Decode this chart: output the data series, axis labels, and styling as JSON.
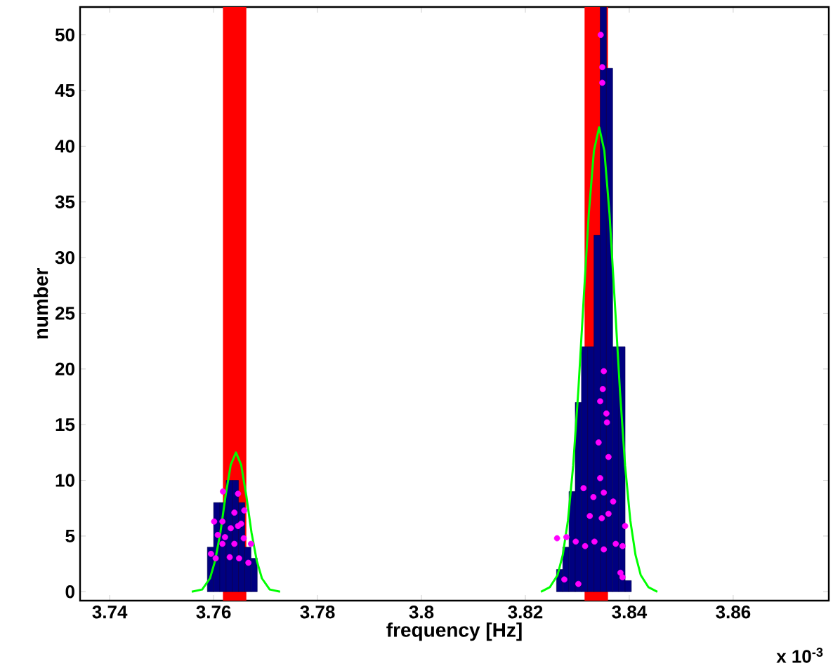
{
  "chart_data": {
    "type": "histogram",
    "xlabel": "frequency [Hz]",
    "ylabel": "number",
    "annotations": [
      "x 10$^{-3}$"
    ],
    "bins": [
      3.7588,
      3.76,
      3.7612,
      3.7624,
      3.7636,
      3.7648,
      3.766,
      3.7672,
      3.7684,
      3.826,
      3.8272,
      3.8284,
      3.8296,
      3.8308,
      3.832,
      3.8332,
      3.8344,
      3.8356,
      3.8368,
      3.838,
      3.8392,
      3.8404
    ],
    "values": [
      4,
      8,
      8,
      10,
      10,
      8,
      4,
      3,
      0,
      2,
      4,
      9,
      17,
      22,
      22,
      32,
      52.5,
      47,
      22,
      22,
      1
    ],
    "color": "#000080",
    "series": [
      {
        "type": "line",
        "color": "#00ff00",
        "x": [
          3.7558,
          3.7578,
          3.7593,
          3.7603,
          3.7613,
          3.7623,
          3.7633,
          3.7643,
          3.7653,
          3.7663,
          3.7673,
          3.7683,
          3.7693,
          3.7708,
          3.7728,
          3.8,
          3.823,
          3.8247,
          3.8262,
          3.8272,
          3.8282,
          3.8292,
          3.8302,
          3.8312,
          3.8322,
          3.8332,
          3.8342,
          3.8352,
          3.8362,
          3.8372,
          3.8382,
          3.8392,
          3.8402,
          3.8412,
          3.8422,
          3.8437,
          3.8454
        ],
        "values": [
          0,
          0.2,
          1.2,
          2.8,
          5.3,
          8.6,
          11.4,
          12.5,
          11.4,
          8.6,
          5.3,
          2.8,
          1.2,
          0.2,
          0,
          null,
          0,
          0.4,
          1.5,
          3.3,
          6.4,
          11.3,
          18.1,
          26.1,
          33.9,
          39.6,
          41.7,
          39.6,
          33.9,
          26.1,
          18.1,
          11.3,
          6.4,
          3.3,
          1.5,
          0.4,
          0
        ]
      },
      {
        "type": "scatter",
        "color": "#ff00ff",
        "x": [
          3.7618,
          3.7647,
          3.7659,
          3.764,
          3.7601,
          3.7617,
          3.7653,
          3.7633,
          3.7647,
          3.7608,
          3.7622,
          3.7658,
          3.7672,
          3.7595,
          3.7631,
          3.7649,
          3.7667,
          3.7604,
          3.7617,
          3.764,
          3.8345,
          3.8348,
          3.8348,
          3.8351,
          3.8349,
          3.8344,
          3.8356,
          3.8357,
          3.8341,
          3.836,
          3.8312,
          3.8344,
          3.8351,
          3.8331,
          3.8369,
          3.8324,
          3.8347,
          3.836,
          3.8392,
          3.8261,
          3.8279,
          3.8297,
          3.8315,
          3.8333,
          3.8374,
          3.8387,
          3.8351,
          3.8275,
          3.8302,
          3.8383,
          3.8387
        ],
        "values": [
          9.0,
          8.8,
          7.3,
          7.1,
          6.3,
          6.3,
          6.1,
          5.7,
          5.9,
          5.1,
          4.9,
          4.8,
          4.3,
          3.4,
          3.1,
          3.0,
          2.6,
          3.0,
          4.3,
          4.3,
          50.0,
          47.1,
          45.7,
          19.8,
          18.2,
          17.1,
          16.0,
          15.2,
          13.4,
          12.1,
          9.3,
          10.2,
          8.9,
          8.5,
          8.1,
          6.8,
          6.6,
          7.0,
          5.9,
          4.8,
          4.9,
          4.5,
          4.1,
          4.5,
          4.3,
          4.1,
          3.8,
          1.1,
          0.7,
          1.7,
          1.3
        ]
      }
    ],
    "bands": [
      {
        "axis": "x",
        "from": 3.7618,
        "to": 3.7663,
        "color": "#ff0000"
      },
      {
        "axis": "x",
        "from": 3.8314,
        "to": 3.8359,
        "color": "#ff0000"
      }
    ],
    "xlim": [
      3.7343,
      3.8784
    ],
    "ylim": [
      -0.8,
      52.5
    ],
    "xticks": [
      3.74,
      3.76,
      3.78,
      3.8,
      3.82,
      3.84,
      3.86
    ],
    "yticks": [
      0,
      5,
      10,
      15,
      20,
      25,
      30,
      35,
      40,
      45,
      50
    ]
  }
}
